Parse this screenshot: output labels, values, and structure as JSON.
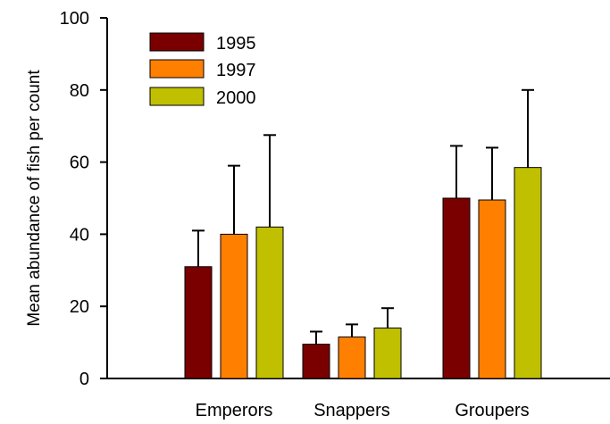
{
  "chart_data": {
    "type": "bar",
    "title": "",
    "xlabel": "",
    "ylabel": "Mean abundance of fish per count",
    "ylim": [
      0,
      100
    ],
    "yticks": [
      0,
      20,
      40,
      60,
      80,
      100
    ],
    "grid": false,
    "legend_position": "top-left",
    "categories": [
      "Emperors",
      "Snappers",
      "Groupers"
    ],
    "series": [
      {
        "name": "1995",
        "color": "#7a0000",
        "values": [
          31,
          9.5,
          50
        ],
        "errors": [
          10,
          3.5,
          14.5
        ]
      },
      {
        "name": "1997",
        "color": "#ff8000",
        "values": [
          40,
          11.5,
          49.5
        ],
        "errors": [
          19,
          3.5,
          14.5
        ]
      },
      {
        "name": "2000",
        "color": "#c0c000",
        "values": [
          42,
          14,
          58.5
        ],
        "errors": [
          25.5,
          5.5,
          21.5
        ]
      }
    ]
  }
}
